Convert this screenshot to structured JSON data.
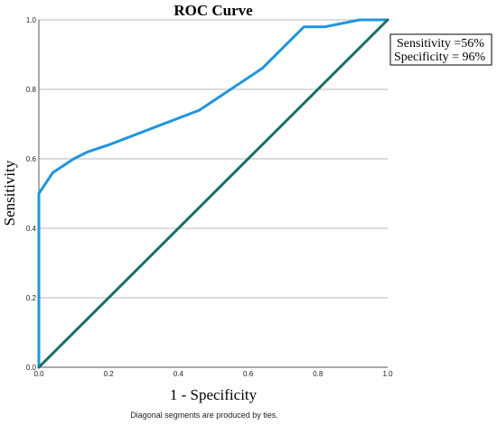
{
  "chart_data": {
    "type": "line",
    "title": "ROC Curve",
    "xlabel": "1 - Specificity",
    "ylabel": "Sensitivity",
    "xlim": [
      0.0,
      1.0
    ],
    "ylim": [
      0.0,
      1.0
    ],
    "xticks": [
      "0.0",
      "0.2",
      "0.4",
      "0.6",
      "0.8",
      "1.0"
    ],
    "yticks": [
      "0.0",
      "0.2",
      "0.4",
      "0.6",
      "0.8",
      "1.0"
    ],
    "grid": "horizontal",
    "series": [
      {
        "color": "#1f95e0",
        "x": [
          0.0,
          0.0,
          0.04,
          0.1,
          0.14,
          0.2,
          0.46,
          0.64,
          0.76,
          0.82,
          0.92,
          1.0
        ],
        "y": [
          0.0,
          0.5,
          0.56,
          0.6,
          0.62,
          0.64,
          0.74,
          0.86,
          0.98,
          0.98,
          1.0,
          1.0
        ]
      },
      {
        "color": "#1c6e6a",
        "x": [
          0.0,
          1.0
        ],
        "y": [
          0.0,
          1.0
        ]
      }
    ],
    "annotation": [
      "Sensitivity =56%",
      "Specificity = 96%"
    ],
    "footnote": "Diagonal segments are produced by ties."
  }
}
